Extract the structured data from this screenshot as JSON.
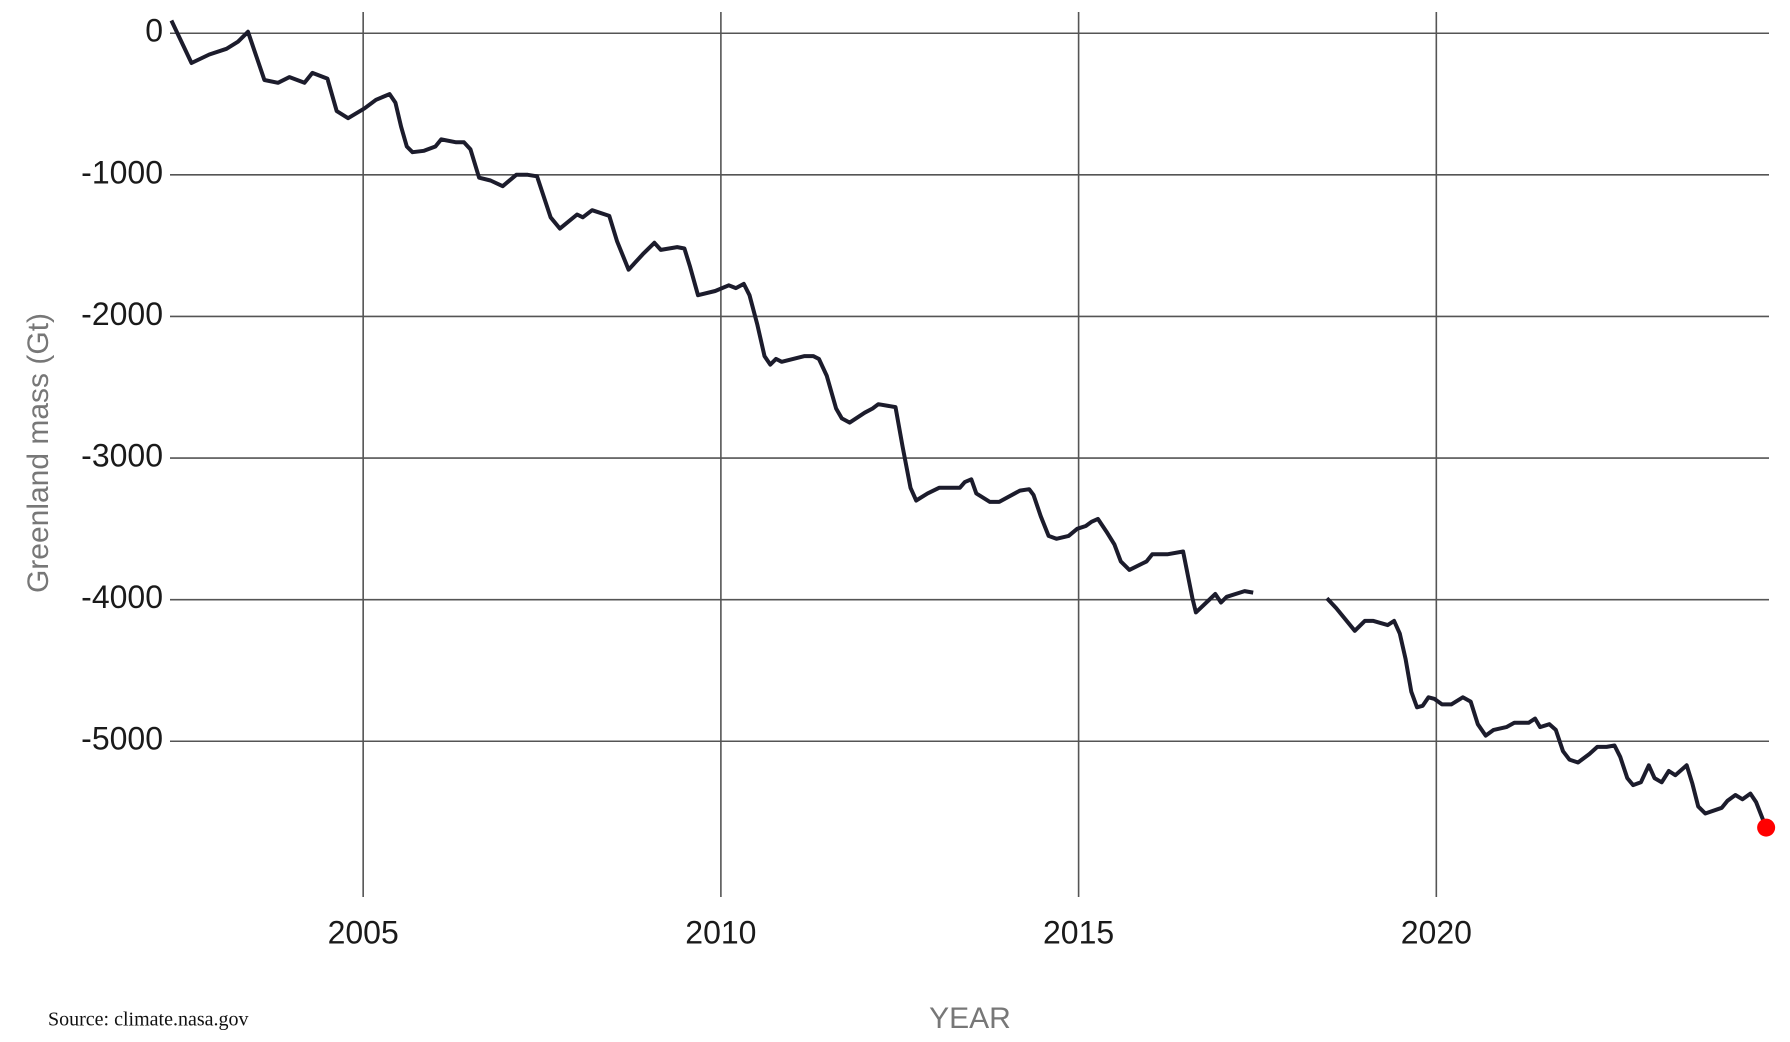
{
  "chart_data": {
    "type": "line",
    "ylabel": "Greenland mass (Gt)",
    "xlabel": "YEAR",
    "source": "Source: climate.nasa.gov",
    "x": [
      2002.32,
      2002.6,
      2002.85,
      2003.09,
      2003.25,
      2003.39,
      2003.62,
      2003.81,
      2003.97,
      2004.18,
      2004.29,
      2004.5,
      2004.63,
      2004.79,
      2005.02,
      2005.18,
      2005.37,
      2005.45,
      2005.53,
      2005.61,
      2005.69,
      2005.85,
      2006.01,
      2006.09,
      2006.3,
      2006.41,
      2006.5,
      2006.62,
      2006.78,
      2006.95,
      2007.14,
      2007.3,
      2007.43,
      2007.62,
      2007.75,
      2007.99,
      2008.07,
      2008.2,
      2008.44,
      2008.55,
      2008.71,
      2008.91,
      2009.07,
      2009.16,
      2009.39,
      2009.49,
      2009.57,
      2009.68,
      2009.92,
      2010.11,
      2010.21,
      2010.32,
      2010.4,
      2010.51,
      2010.61,
      2010.69,
      2010.77,
      2010.85,
      2011.17,
      2011.29,
      2011.37,
      2011.48,
      2011.61,
      2011.69,
      2011.8,
      2012.01,
      2012.12,
      2012.2,
      2012.44,
      2012.54,
      2012.65,
      2012.73,
      2012.89,
      2013.05,
      2013.34,
      2013.41,
      2013.5,
      2013.57,
      2013.76,
      2013.89,
      2014.18,
      2014.31,
      2014.37,
      2014.47,
      2014.58,
      2014.69,
      2014.86,
      2014.98,
      2015.1,
      2015.18,
      2015.27,
      2015.39,
      2015.5,
      2015.59,
      2015.71,
      2015.95,
      2016.03,
      2016.24,
      2016.46,
      2016.59,
      2016.64,
      2016.91,
      2016.99,
      2017.07,
      2017.32,
      2017.44,
      2017.9,
      2018.47,
      2018.6,
      2018.86,
      2019.0,
      2019.12,
      2019.32,
      2019.41,
      2019.49,
      2019.57,
      2019.65,
      2019.73,
      2019.81,
      2019.89,
      2019.97,
      2020.08,
      2020.21,
      2020.37,
      2020.48,
      2020.58,
      2020.69,
      2020.8,
      2020.98,
      2021.09,
      2021.29,
      2021.38,
      2021.45,
      2021.58,
      2021.67,
      2021.77,
      2021.86,
      2021.98,
      2022.14,
      2022.25,
      2022.38,
      2022.49,
      2022.57,
      2022.67,
      2022.75,
      2022.86,
      2022.97,
      2023.05,
      2023.15,
      2023.25,
      2023.34,
      2023.5,
      2023.58,
      2023.66,
      2023.76,
      2023.99,
      2024.07,
      2024.18,
      2024.28,
      2024.39,
      2024.47,
      2024.61
    ],
    "values": [
      90,
      -210,
      -150,
      -110,
      -60,
      10,
      -330,
      -350,
      -310,
      -350,
      -280,
      -320,
      -550,
      -600,
      -530,
      -470,
      -430,
      -490,
      -660,
      -800,
      -840,
      -830,
      -800,
      -750,
      -770,
      -770,
      -820,
      -1020,
      -1040,
      -1080,
      -1000,
      -1000,
      -1010,
      -1300,
      -1380,
      -1280,
      -1300,
      -1250,
      -1290,
      -1470,
      -1670,
      -1560,
      -1480,
      -1530,
      -1510,
      -1520,
      -1650,
      -1850,
      -1820,
      -1780,
      -1800,
      -1770,
      -1850,
      -2060,
      -2280,
      -2340,
      -2300,
      -2320,
      -2280,
      -2280,
      -2300,
      -2420,
      -2650,
      -2720,
      -2750,
      -2680,
      -2650,
      -2620,
      -2640,
      -2920,
      -3210,
      -3300,
      -3250,
      -3210,
      -3210,
      -3170,
      -3150,
      -3250,
      -3310,
      -3310,
      -3230,
      -3220,
      -3260,
      -3410,
      -3550,
      -3570,
      -3550,
      -3500,
      -3480,
      -3450,
      -3430,
      -3520,
      -3610,
      -3730,
      -3790,
      -3730,
      -3680,
      -3680,
      -3660,
      -3990,
      -4090,
      -3960,
      -4020,
      -3980,
      -3940,
      -3950,
      null,
      -3990,
      -4060,
      -4220,
      -4150,
      -4150,
      -4180,
      -4150,
      -4240,
      -4420,
      -4650,
      -4760,
      -4750,
      -4690,
      -4700,
      -4740,
      -4740,
      -4690,
      -4720,
      -4880,
      -4960,
      -4920,
      -4900,
      -4870,
      -4870,
      -4840,
      -4900,
      -4880,
      -4920,
      -5070,
      -5130,
      -5150,
      -5090,
      -5040,
      -5040,
      -5030,
      -5110,
      -5260,
      -5310,
      -5290,
      -5170,
      -5260,
      -5290,
      -5210,
      -5240,
      -5170,
      -5300,
      -5460,
      -5510,
      -5470,
      -5420,
      -5380,
      -5410,
      -5370,
      -5430,
      -5610
    ],
    "color": "#1c1c2c",
    "last_point_color": "#ff0000",
    "xlim": [
      2002.3,
      2024.65
    ],
    "xticks": [
      2005,
      2010,
      2015,
      2020
    ],
    "ylim": [
      -6100,
      150
    ],
    "yticks": [
      0,
      -1000,
      -2000,
      -3000,
      -4000,
      -5000
    ],
    "grid": true
  }
}
